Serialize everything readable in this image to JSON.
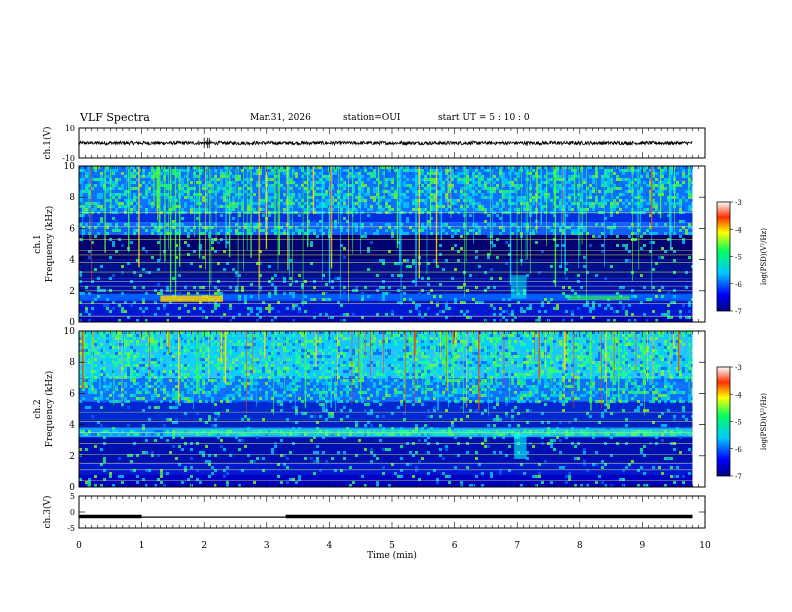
{
  "header": {
    "title": "VLF Spectra",
    "date": "Mar.31, 2026",
    "station": "station=OUI",
    "start": "start  UT =   5 : 10 : 0"
  },
  "chart_data": [
    {
      "type": "line",
      "panel": "ch1-waveform",
      "ylabel": "ch.1(V)",
      "ylim": [
        -10,
        10
      ],
      "ytick_labels": [
        "10",
        "-10"
      ],
      "baseline_value": 0,
      "noise_amplitude": 1.2
    },
    {
      "type": "heatmap",
      "panel": "ch1-spectrogram",
      "ylabel": "ch.1\nFrequency (kHz)",
      "ylabel_line1": "ch.1",
      "ylabel_line2": "Frequency (kHz)",
      "ylim": [
        0,
        10
      ],
      "ytick_labels": [
        "0",
        "2",
        "4",
        "6",
        "8",
        "10"
      ],
      "colorbar": {
        "label": "log(PSD)(V²/Hz)",
        "range": [
          -7,
          -3
        ],
        "tick_labels": [
          "-3",
          "-4",
          "-5",
          "-6",
          "-7"
        ]
      }
    },
    {
      "type": "heatmap",
      "panel": "ch2-spectrogram",
      "ylabel": "ch.2\nFrequency (kHz)",
      "ylabel_line1": "ch.2",
      "ylabel_line2": "Frequency (kHz)",
      "ylim": [
        0,
        10
      ],
      "ytick_labels": [
        "0",
        "2",
        "4",
        "6",
        "8",
        "10"
      ],
      "colorbar": {
        "label": "log(PSD)(V²/Hz)",
        "range": [
          -7,
          -3
        ],
        "tick_labels": [
          "-3",
          "-4",
          "-5",
          "-6",
          "-7"
        ]
      }
    },
    {
      "type": "line",
      "panel": "ch3-waveform",
      "ylabel": "ch.3(V)",
      "ylim": [
        -5,
        5
      ],
      "ytick_labels": [
        "5",
        "0",
        "-5"
      ],
      "segments": [
        {
          "x_start": 0.0,
          "x_end": 1.0,
          "value": -1.4
        },
        {
          "x_start": 1.0,
          "x_end": 3.3,
          "value": -1.6
        },
        {
          "x_start": 3.3,
          "x_end": 9.8,
          "value": -1.4
        }
      ]
    }
  ],
  "xaxis": {
    "label": "Time (min)",
    "xlim": [
      0,
      10
    ],
    "tick_labels": [
      "0",
      "1",
      "2",
      "3",
      "4",
      "5",
      "6",
      "7",
      "8",
      "9",
      "10"
    ],
    "data_end": 9.8
  }
}
